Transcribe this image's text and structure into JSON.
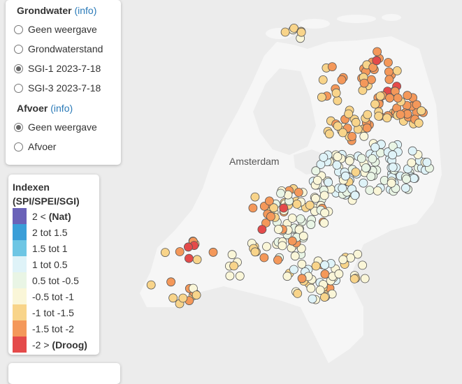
{
  "panel": {
    "grondwater": {
      "title": "Grondwater",
      "info": "(info)",
      "options": [
        {
          "label": "Geen weergave",
          "checked": false
        },
        {
          "label": "Grondwaterstand",
          "checked": false
        },
        {
          "label": "SGI-1 2023-7-18",
          "checked": true
        },
        {
          "label": "SGI-3 2023-7-18",
          "checked": false
        }
      ]
    },
    "afvoer": {
      "title": "Afvoer",
      "info": "(info)",
      "options": [
        {
          "label": "Geen weergave",
          "checked": true
        },
        {
          "label": "Afvoer",
          "checked": false
        }
      ]
    }
  },
  "legend": {
    "title_line1": "Indexen",
    "title_line2": "(SPI/SPEI/SGI)",
    "items": [
      {
        "text": "2 <",
        "bold": "(Nat)",
        "color": "#6a62b8"
      },
      {
        "text": "2 tot 1.5",
        "bold": "",
        "color": "#3a9ed8"
      },
      {
        "text": "1.5 tot 1",
        "bold": "",
        "color": "#6ec6e4"
      },
      {
        "text": "1 tot 0.5",
        "bold": "",
        "color": "#dff3f8"
      },
      {
        "text": "0.5 tot -0.5",
        "bold": "",
        "color": "#e9f5e5"
      },
      {
        "text": "-0.5 tot -1",
        "bold": "",
        "color": "#faf6d8"
      },
      {
        "text": "-1 tot -1.5",
        "bold": "",
        "color": "#f8d48a"
      },
      {
        "text": "-1.5 tot -2",
        "bold": "",
        "color": "#f4985a"
      },
      {
        "text": "-2 >",
        "bold": "(Droog)",
        "color": "#e44a4a"
      }
    ]
  },
  "map": {
    "city": "Amsterdam",
    "land_color": "#f6f6f6",
    "sea_color": "#ececec"
  }
}
